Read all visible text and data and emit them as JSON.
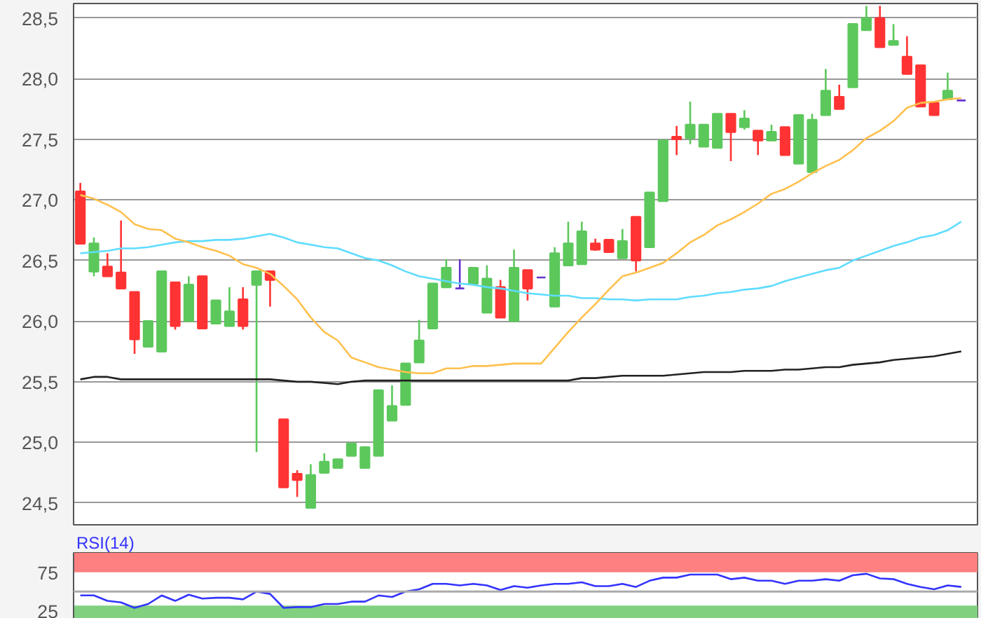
{
  "chart_data": [
    {
      "type": "candlestick",
      "categories": [
        null,
        null,
        null,
        null,
        null,
        null,
        null,
        null,
        null,
        null,
        null,
        null,
        null,
        null,
        null,
        null,
        null,
        null,
        null,
        null,
        null,
        null,
        null,
        null,
        null,
        null,
        null,
        null,
        null,
        null,
        null,
        null,
        null,
        null,
        null,
        null,
        null,
        null,
        null,
        null,
        null,
        null,
        null,
        null,
        null,
        null,
        null,
        null,
        null,
        null,
        null,
        null,
        null,
        null,
        null,
        null,
        null,
        null,
        null,
        null,
        null,
        null,
        null,
        null,
        null,
        null
      ],
      "ohlc": [
        [
          27.07,
          27.14,
          26.64,
          26.64
        ],
        [
          26.41,
          26.69,
          26.37,
          26.64
        ],
        [
          26.45,
          26.56,
          26.37,
          26.37
        ],
        [
          26.4,
          26.83,
          26.27,
          26.27
        ],
        [
          26.24,
          26.24,
          25.73,
          25.85
        ],
        [
          25.79,
          26.0,
          25.79,
          26.0
        ],
        [
          25.75,
          26.41,
          25.75,
          26.41
        ],
        [
          26.32,
          26.32,
          25.93,
          25.96
        ],
        [
          26.0,
          26.37,
          26.0,
          26.3
        ],
        [
          26.37,
          26.37,
          25.94,
          25.94
        ],
        [
          25.98,
          26.17,
          25.98,
          26.17
        ],
        [
          25.96,
          26.28,
          25.96,
          26.08
        ],
        [
          26.18,
          26.28,
          25.93,
          25.96
        ],
        [
          26.3,
          26.41,
          24.92,
          26.41
        ],
        [
          26.41,
          26.41,
          26.12,
          26.34
        ],
        [
          25.19,
          25.19,
          24.63,
          24.63
        ],
        [
          24.74,
          24.77,
          24.55,
          24.69
        ],
        [
          24.46,
          24.82,
          24.46,
          24.73
        ],
        [
          24.75,
          24.91,
          24.75,
          24.84
        ],
        [
          24.79,
          24.86,
          24.79,
          24.86
        ],
        [
          24.89,
          24.99,
          24.89,
          24.99
        ],
        [
          24.79,
          24.96,
          24.79,
          24.96
        ],
        [
          24.89,
          25.43,
          24.89,
          25.43
        ],
        [
          25.18,
          25.47,
          25.18,
          25.3
        ],
        [
          25.31,
          25.65,
          25.31,
          25.65
        ],
        [
          25.66,
          26.01,
          25.66,
          25.84
        ],
        [
          25.94,
          26.31,
          25.94,
          26.31
        ],
        [
          26.28,
          26.51,
          26.28,
          26.44
        ],
        [
          26.27,
          26.51,
          26.27,
          26.27
        ],
        [
          26.31,
          26.44,
          26.31,
          26.44
        ],
        [
          26.07,
          26.46,
          26.07,
          26.35
        ],
        [
          26.28,
          26.34,
          26.03,
          26.03
        ],
        [
          26.0,
          26.59,
          26.0,
          26.44
        ],
        [
          26.42,
          26.42,
          26.17,
          26.27
        ],
        [
          26.36,
          26.36,
          26.36,
          26.36
        ],
        [
          26.12,
          26.61,
          26.12,
          26.56
        ],
        [
          26.46,
          26.82,
          26.46,
          26.64
        ],
        [
          26.47,
          26.82,
          26.47,
          26.74
        ],
        [
          26.64,
          26.68,
          26.58,
          26.59
        ],
        [
          26.67,
          26.67,
          26.57,
          26.57
        ],
        [
          26.52,
          26.76,
          26.52,
          26.66
        ],
        [
          26.86,
          26.86,
          26.41,
          26.5
        ],
        [
          26.61,
          27.06,
          26.61,
          27.06
        ],
        [
          26.99,
          27.49,
          26.99,
          27.49
        ],
        [
          27.52,
          27.61,
          27.37,
          27.5
        ],
        [
          27.51,
          27.81,
          27.46,
          27.62
        ],
        [
          27.44,
          27.62,
          27.44,
          27.62
        ],
        [
          27.43,
          27.71,
          27.43,
          27.71
        ],
        [
          27.71,
          27.71,
          27.32,
          27.56
        ],
        [
          27.6,
          27.74,
          27.58,
          27.67
        ],
        [
          27.57,
          27.57,
          27.37,
          27.49
        ],
        [
          27.49,
          27.62,
          27.49,
          27.56
        ],
        [
          27.6,
          27.6,
          27.37,
          27.37
        ],
        [
          27.3,
          27.7,
          27.3,
          27.7
        ],
        [
          27.23,
          27.71,
          27.23,
          27.66
        ],
        [
          27.7,
          28.08,
          27.7,
          27.9
        ],
        [
          27.85,
          27.95,
          27.75,
          27.75
        ],
        [
          27.93,
          28.45,
          27.93,
          28.45
        ],
        [
          28.4,
          28.6,
          28.4,
          28.5
        ],
        [
          28.5,
          28.6,
          28.26,
          28.26
        ],
        [
          28.28,
          28.45,
          28.28,
          28.31
        ],
        [
          28.18,
          28.35,
          28.04,
          28.04
        ],
        [
          28.11,
          28.11,
          27.77,
          27.77
        ],
        [
          27.8,
          27.8,
          27.7,
          27.7
        ],
        [
          27.83,
          28.05,
          27.83,
          27.9
        ],
        [
          27.82,
          27.82,
          27.82,
          27.82
        ]
      ],
      "colors": [
        "#ff3333",
        "#5cc85c",
        "#ff3333",
        "#ff3333",
        "#ff3333",
        "#5cc85c",
        "#5cc85c",
        "#ff3333",
        "#5cc85c",
        "#ff3333",
        "#5cc85c",
        "#5cc85c",
        "#ff3333",
        "#5cc85c",
        "#ff3333",
        "#ff3333",
        "#ff3333",
        "#5cc85c",
        "#5cc85c",
        "#5cc85c",
        "#5cc85c",
        "#5cc85c",
        "#5cc85c",
        "#5cc85c",
        "#5cc85c",
        "#5cc85c",
        "#5cc85c",
        "#5cc85c",
        "#6633cc",
        "#5cc85c",
        "#5cc85c",
        "#ff3333",
        "#5cc85c",
        "#ff3333",
        "#6633cc",
        "#5cc85c",
        "#5cc85c",
        "#5cc85c",
        "#ff3333",
        "#ff3333",
        "#5cc85c",
        "#ff3333",
        "#5cc85c",
        "#5cc85c",
        "#ff3333",
        "#5cc85c",
        "#5cc85c",
        "#5cc85c",
        "#ff3333",
        "#5cc85c",
        "#ff3333",
        "#5cc85c",
        "#ff3333",
        "#5cc85c",
        "#5cc85c",
        "#5cc85c",
        "#ff3333",
        "#5cc85c",
        "#5cc85c",
        "#ff3333",
        "#5cc85c",
        "#ff3333",
        "#ff3333",
        "#ff3333",
        "#5cc85c",
        "#6633cc"
      ],
      "series": [
        {
          "type": "line",
          "color": "#222222",
          "values": [
            25.52,
            25.54,
            25.54,
            25.52,
            25.52,
            25.52,
            25.52,
            25.52,
            25.52,
            25.52,
            25.52,
            25.52,
            25.52,
            25.52,
            25.52,
            25.51,
            25.5,
            25.5,
            25.49,
            25.48,
            25.5,
            25.51,
            25.51,
            25.51,
            25.51,
            25.51,
            25.51,
            25.51,
            25.51,
            25.51,
            25.51,
            25.51,
            25.51,
            25.51,
            25.51,
            25.51,
            25.51,
            25.53,
            25.53,
            25.54,
            25.55,
            25.55,
            25.55,
            25.55,
            25.56,
            25.57,
            25.58,
            25.58,
            25.58,
            25.59,
            25.59,
            25.59,
            25.6,
            25.6,
            25.61,
            25.62,
            25.62,
            25.64,
            25.65,
            25.66,
            25.68,
            25.69,
            25.7,
            25.71,
            25.73,
            25.75
          ]
        },
        {
          "type": "line",
          "color": "#5fdcff",
          "values": [
            26.56,
            26.57,
            26.58,
            26.6,
            26.6,
            26.61,
            26.63,
            26.65,
            26.66,
            26.66,
            26.67,
            26.67,
            26.68,
            26.7,
            26.72,
            26.69,
            26.65,
            26.63,
            26.61,
            26.6,
            26.56,
            26.52,
            26.5,
            26.46,
            26.41,
            26.37,
            26.35,
            26.33,
            26.31,
            26.3,
            26.28,
            26.27,
            26.25,
            26.23,
            26.22,
            26.21,
            26.21,
            26.19,
            26.19,
            26.18,
            26.18,
            26.17,
            26.18,
            26.18,
            26.18,
            26.2,
            26.21,
            26.23,
            26.24,
            26.26,
            26.27,
            26.29,
            26.33,
            26.36,
            26.39,
            26.42,
            26.44,
            26.5,
            26.54,
            26.58,
            26.62,
            26.65,
            26.69,
            26.71,
            26.75,
            26.82
          ]
        },
        {
          "type": "line",
          "color": "#ffc04d",
          "values": [
            27.04,
            27.01,
            26.96,
            26.9,
            26.8,
            26.76,
            26.75,
            26.68,
            26.65,
            26.61,
            26.58,
            26.54,
            26.47,
            26.44,
            26.39,
            26.29,
            26.18,
            26.03,
            25.91,
            25.84,
            25.7,
            25.66,
            25.62,
            25.6,
            25.58,
            25.57,
            25.57,
            25.61,
            25.61,
            25.63,
            25.63,
            25.64,
            25.65,
            25.65,
            25.65,
            25.78,
            25.91,
            26.03,
            26.14,
            26.26,
            26.37,
            26.4,
            26.44,
            26.48,
            26.56,
            26.65,
            26.71,
            26.79,
            26.84,
            26.9,
            26.97,
            27.05,
            27.09,
            27.15,
            27.22,
            27.28,
            27.33,
            27.41,
            27.51,
            27.57,
            27.65,
            27.76,
            27.8,
            27.81,
            27.83,
            27.84
          ]
        }
      ],
      "ylim": [
        24.32,
        28.62
      ],
      "yticks": [
        {
          "value": 24.5,
          "label": "24,5"
        },
        {
          "value": 25,
          "label": "25,0"
        },
        {
          "value": 25.5,
          "label": "25,5"
        },
        {
          "value": 26,
          "label": "26,0"
        },
        {
          "value": 26.5,
          "label": "26,5"
        },
        {
          "value": 27,
          "label": "27,0"
        },
        {
          "value": 27.5,
          "label": "27,5"
        },
        {
          "value": 28,
          "label": "28,0"
        },
        {
          "value": 28.5,
          "label": "28,5"
        }
      ],
      "grid": "y",
      "tick_labels": "y"
    },
    {
      "type": "line",
      "title": "RSI(14)",
      "categories": [
        null,
        null,
        null,
        null,
        null,
        null,
        null,
        null,
        null,
        null,
        null,
        null,
        null,
        null,
        null,
        null,
        null,
        null,
        null,
        null,
        null,
        null,
        null,
        null,
        null,
        null,
        null,
        null,
        null,
        null,
        null,
        null,
        null,
        null,
        null,
        null,
        null,
        null,
        null,
        null,
        null,
        null,
        null,
        null,
        null,
        null,
        null,
        null,
        null,
        null,
        null,
        null,
        null,
        null,
        null,
        null,
        null,
        null,
        null,
        null,
        null,
        null,
        null,
        null,
        null,
        null
      ],
      "series": [
        {
          "color": "#3333ff",
          "values": [
            45,
            45,
            38,
            36,
            29,
            34,
            45,
            38,
            46,
            41,
            42,
            42,
            40,
            50,
            47,
            29,
            30,
            30,
            34,
            34,
            37,
            37,
            45,
            43,
            50,
            53,
            60,
            60,
            58,
            60,
            58,
            52,
            57,
            55,
            58,
            60,
            60,
            62,
            57,
            57,
            60,
            56,
            64,
            68,
            68,
            72,
            72,
            72,
            66,
            68,
            64,
            64,
            60,
            64,
            64,
            66,
            64,
            71,
            73,
            67,
            66,
            60,
            56,
            53,
            58,
            56
          ]
        }
      ],
      "ylim": [
        15,
        100
      ],
      "yticks": [
        25,
        75
      ],
      "bands": [
        {
          "axis": "y",
          "from": 75,
          "to": 100,
          "color": "#ff8080"
        },
        {
          "axis": "y",
          "from": 15,
          "to": 32,
          "color": "#80d080"
        }
      ],
      "ref_lines": [
        {
          "axis": "y",
          "value": 50,
          "color": "#aaaaaa"
        }
      ],
      "tick_labels": "y"
    }
  ]
}
